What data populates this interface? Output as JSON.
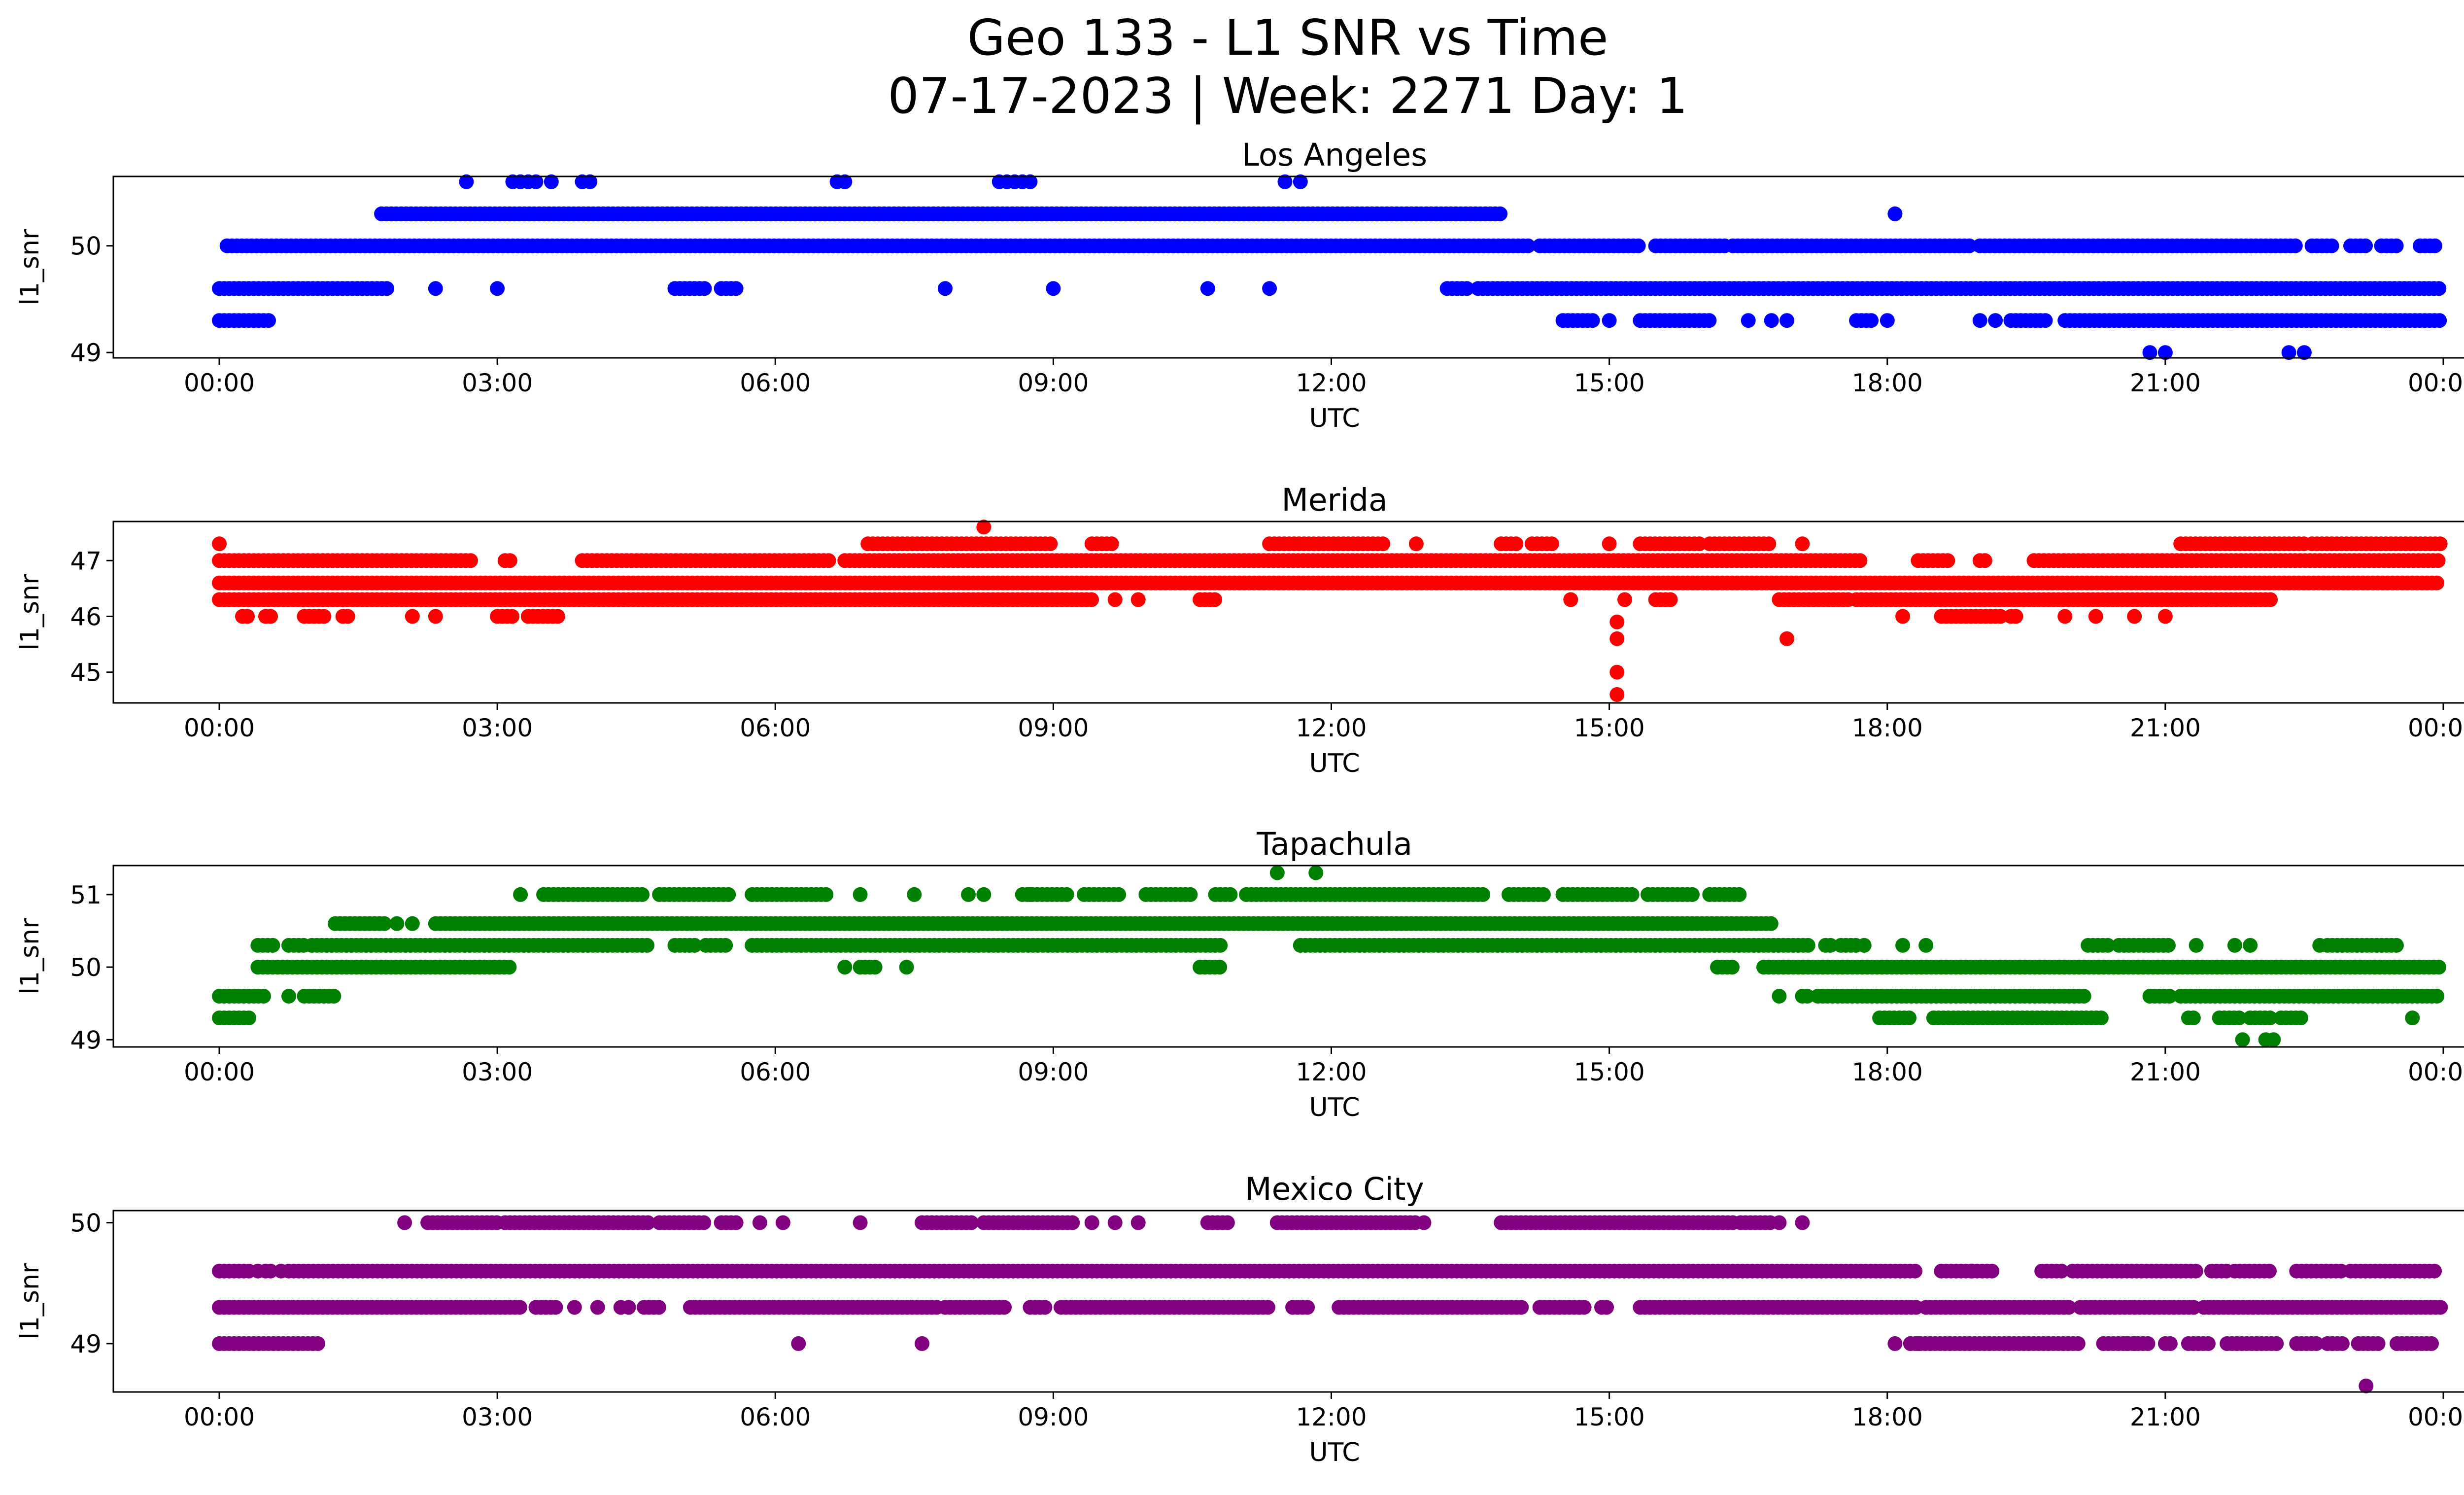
{
  "figure": {
    "title_line1": "Geo 133 - L1 SNR vs Time",
    "title_line2": "07-17-2023 | Week: 2271 Day: 1"
  },
  "chart_data": [
    {
      "type": "scatter",
      "title": "Los Angeles",
      "xlabel": "UTC",
      "ylabel": "l1_snr",
      "color": "#0000ff",
      "xlim": [
        "00:00",
        "24:00"
      ],
      "xticks": [
        "00:00",
        "03:00",
        "06:00",
        "09:00",
        "12:00",
        "15:00",
        "18:00",
        "21:00",
        "00:00"
      ],
      "ylim": [
        48.95,
        50.65
      ],
      "yticks": [
        49,
        50
      ],
      "grid": false,
      "series": [
        {
          "y": 50.0,
          "ranges": [
            [
              "00:05",
              "14:10"
            ],
            [
              "14:15",
              "15:20"
            ],
            [
              "15:30",
              "16:15"
            ],
            [
              "16:20",
              "18:55"
            ],
            [
              "19:00",
              "22:25"
            ],
            [
              "22:35",
              "22:50"
            ],
            [
              "23:00",
              "23:10"
            ],
            [
              "23:20",
              "23:30"
            ],
            [
              "23:45",
              "23:55"
            ]
          ]
        },
        {
          "y": 50.3,
          "ranges": [
            [
              "01:45",
              "13:50"
            ]
          ],
          "points": [
            "18:05"
          ]
        },
        {
          "y": 49.6,
          "ranges": [
            [
              "00:00",
              "01:50"
            ],
            [
              "04:55",
              "05:15"
            ],
            [
              "05:25",
              "05:35"
            ],
            [
              "13:15",
              "13:30"
            ],
            [
              "13:35",
              "23:59"
            ]
          ],
          "points": [
            "02:20",
            "03:00",
            "07:50",
            "09:00",
            "10:40",
            "11:20"
          ]
        },
        {
          "y": 49.3,
          "ranges": [
            [
              "00:00",
              "00:35"
            ],
            [
              "14:30",
              "14:50"
            ],
            [
              "15:20",
              "16:05"
            ],
            [
              "17:40",
              "17:50"
            ],
            [
              "19:20",
              "19:45"
            ],
            [
              "19:55",
              "23:59"
            ]
          ],
          "points": [
            "15:00",
            "16:30",
            "16:45",
            "16:55",
            "18:00",
            "19:00",
            "19:10"
          ]
        },
        {
          "y": 50.6,
          "points": [
            "02:40",
            "03:10",
            "03:15",
            "03:20",
            "03:25",
            "03:35",
            "03:55",
            "04:00",
            "06:40",
            "06:45",
            "08:25",
            "08:30",
            "08:35",
            "08:40",
            "08:45",
            "11:30",
            "11:40"
          ]
        },
        {
          "y": 49.0,
          "points": [
            "20:50",
            "21:00",
            "22:20",
            "22:30"
          ]
        }
      ]
    },
    {
      "type": "scatter",
      "title": "Merida",
      "xlabel": "UTC",
      "ylabel": "l1_snr",
      "color": "#ff0000",
      "xlim": [
        "00:00",
        "24:00"
      ],
      "xticks": [
        "00:00",
        "03:00",
        "06:00",
        "09:00",
        "12:00",
        "15:00",
        "18:00",
        "21:00",
        "00:00"
      ],
      "ylim": [
        44.45,
        47.7
      ],
      "yticks": [
        45,
        46,
        47
      ],
      "grid": false,
      "series": [
        {
          "y": 47.0,
          "ranges": [
            [
              "00:00",
              "02:45"
            ],
            [
              "03:05",
              "03:10"
            ],
            [
              "03:55",
              "06:35"
            ],
            [
              "06:45",
              "17:45"
            ],
            [
              "18:20",
              "18:40"
            ],
            [
              "19:00",
              "19:05"
            ],
            [
              "19:35",
              "23:59"
            ]
          ]
        },
        {
          "y": 46.6,
          "ranges": [
            [
              "00:00",
              "23:59"
            ]
          ]
        },
        {
          "y": 46.3,
          "ranges": [
            [
              "00:00",
              "09:25"
            ],
            [
              "10:35",
              "10:45"
            ],
            [
              "15:30",
              "15:40"
            ],
            [
              "16:50",
              "17:35"
            ],
            [
              "17:40",
              "22:10"
            ]
          ],
          "points": [
            "09:40",
            "09:55",
            "14:35",
            "15:10"
          ]
        },
        {
          "y": 47.3,
          "ranges": [
            [
              "07:00",
              "09:00"
            ],
            [
              "09:25",
              "09:40"
            ],
            [
              "11:20",
              "12:35"
            ],
            [
              "13:50",
              "14:00"
            ],
            [
              "14:10",
              "14:25"
            ],
            [
              "15:20",
              "16:00"
            ],
            [
              "16:05",
              "16:45"
            ],
            [
              "21:10",
              "22:30"
            ],
            [
              "22:35",
              "23:59"
            ]
          ],
          "points": [
            "00:00",
            "12:55",
            "15:00",
            "17:05"
          ]
        },
        {
          "y": 46.0,
          "ranges": [
            [
              "00:15",
              "00:20"
            ],
            [
              "00:30",
              "00:35"
            ],
            [
              "00:55",
              "01:10"
            ],
            [
              "01:20",
              "01:25"
            ],
            [
              "03:00",
              "03:10"
            ],
            [
              "03:20",
              "03:40"
            ],
            [
              "18:35",
              "19:15"
            ],
            [
              "19:20",
              "19:25"
            ]
          ],
          "points": [
            "02:05",
            "02:20",
            "18:10",
            "19:55",
            "20:15",
            "20:40",
            "21:00"
          ]
        },
        {
          "y": 47.6,
          "points": [
            "08:15"
          ]
        },
        {
          "y": 45.9,
          "points": [
            "15:05"
          ]
        },
        {
          "y": 45.6,
          "points": [
            "15:05",
            "16:55"
          ]
        },
        {
          "y": 45.0,
          "points": [
            "15:05"
          ]
        },
        {
          "y": 44.6,
          "points": [
            "15:05"
          ]
        }
      ]
    },
    {
      "type": "scatter",
      "title": "Tapachula",
      "xlabel": "UTC",
      "ylabel": "l1_snr",
      "color": "#008000",
      "xlim": [
        "00:00",
        "24:00"
      ],
      "xticks": [
        "00:00",
        "03:00",
        "06:00",
        "09:00",
        "12:00",
        "15:00",
        "18:00",
        "21:00",
        "00:00"
      ],
      "ylim": [
        48.9,
        51.4
      ],
      "yticks": [
        49,
        50,
        51
      ],
      "grid": false,
      "series": [
        {
          "y": 51.0,
          "ranges": [
            [
              "03:30",
              "04:35"
            ],
            [
              "04:45",
              "05:30"
            ],
            [
              "05:45",
              "06:35"
            ],
            [
              "08:40",
              "09:10"
            ],
            [
              "09:20",
              "09:45"
            ],
            [
              "10:00",
              "10:30"
            ],
            [
              "10:45",
              "10:55"
            ],
            [
              "11:05",
              "13:40"
            ],
            [
              "13:55",
              "14:20"
            ],
            [
              "14:30",
              "15:15"
            ],
            [
              "15:25",
              "15:55"
            ],
            [
              "16:05",
              "16:25"
            ]
          ],
          "points": [
            "03:15",
            "06:55",
            "07:30",
            "08:05",
            "08:15",
            "08:45"
          ]
        },
        {
          "y": 50.6,
          "ranges": [
            [
              "01:15",
              "01:50"
            ],
            [
              "02:20",
              "16:45"
            ]
          ],
          "points": [
            "01:55",
            "02:05"
          ]
        },
        {
          "y": 50.3,
          "ranges": [
            [
              "00:25",
              "00:35"
            ],
            [
              "00:45",
              "00:55"
            ],
            [
              "01:00",
              "04:40"
            ],
            [
              "04:55",
              "05:10"
            ],
            [
              "05:15",
              "05:30"
            ],
            [
              "05:45",
              "10:50"
            ],
            [
              "11:40",
              "17:10"
            ],
            [
              "17:20",
              "17:25"
            ],
            [
              "17:30",
              "17:40"
            ],
            [
              "20:10",
              "20:25"
            ],
            [
              "20:30",
              "21:05"
            ],
            [
              "22:45",
              "23:30"
            ]
          ],
          "points": [
            "17:45",
            "18:10",
            "18:25",
            "21:20",
            "21:45",
            "21:55",
            "22:40"
          ]
        },
        {
          "y": 50.0,
          "ranges": [
            [
              "00:25",
              "03:10"
            ],
            [
              "06:55",
              "07:05"
            ],
            [
              "10:35",
              "10:50"
            ],
            [
              "16:10",
              "16:20"
            ],
            [
              "16:40",
              "23:59"
            ]
          ],
          "points": [
            "06:45",
            "07:25"
          ]
        },
        {
          "y": 49.6,
          "ranges": [
            [
              "00:00",
              "00:30"
            ],
            [
              "00:55",
              "01:15"
            ],
            [
              "17:05",
              "17:10"
            ],
            [
              "17:15",
              "20:10"
            ],
            [
              "20:50",
              "21:05"
            ],
            [
              "21:10",
              "23:59"
            ]
          ],
          "points": [
            "00:45",
            "16:50"
          ]
        },
        {
          "y": 49.3,
          "ranges": [
            [
              "00:00",
              "00:20"
            ],
            [
              "17:55",
              "18:15"
            ],
            [
              "18:30",
              "20:20"
            ],
            [
              "21:15",
              "21:20"
            ],
            [
              "21:35",
              "21:50"
            ],
            [
              "21:55",
              "22:10"
            ],
            [
              "22:15",
              "22:30"
            ]
          ],
          "points": [
            "23:40"
          ]
        },
        {
          "y": 51.3,
          "points": [
            "11:25",
            "11:50"
          ]
        },
        {
          "y": 49.0,
          "points": [
            "21:50",
            "22:05",
            "22:10"
          ]
        }
      ]
    },
    {
      "type": "scatter",
      "title": "Mexico City",
      "xlabel": "UTC",
      "ylabel": "l1_snr",
      "color": "#800080",
      "xlim": [
        "00:00",
        "24:00"
      ],
      "xticks": [
        "00:00",
        "03:00",
        "06:00",
        "09:00",
        "12:00",
        "15:00",
        "18:00",
        "21:00",
        "00:00"
      ],
      "ylim": [
        48.6,
        50.1
      ],
      "yticks": [
        49,
        50
      ],
      "grid": false,
      "series": [
        {
          "y": 50.0,
          "ranges": [
            [
              "02:15",
              "03:00"
            ],
            [
              "03:05",
              "04:40"
            ],
            [
              "04:45",
              "05:15"
            ],
            [
              "05:25",
              "05:35"
            ],
            [
              "07:35",
              "08:10"
            ],
            [
              "08:15",
              "09:15"
            ],
            [
              "10:40",
              "10:55"
            ],
            [
              "11:25",
              "12:55"
            ],
            [
              "13:50",
              "16:20"
            ],
            [
              "16:25",
              "16:45"
            ]
          ],
          "points": [
            "02:00",
            "05:50",
            "06:05",
            "06:55",
            "09:25",
            "09:40",
            "09:55",
            "13:00",
            "16:50",
            "17:05"
          ]
        },
        {
          "y": 49.6,
          "ranges": [
            [
              "00:00",
              "00:20"
            ],
            [
              "00:30",
              "00:35"
            ],
            [
              "00:45",
              "18:20"
            ],
            [
              "18:35",
              "18:55"
            ],
            [
              "18:55",
              "19:10"
            ],
            [
              "19:40",
              "19:55"
            ],
            [
              "20:00",
              "21:20"
            ],
            [
              "21:30",
              "21:40"
            ],
            [
              "21:45",
              "22:10"
            ],
            [
              "22:25",
              "22:55"
            ],
            [
              "23:00",
              "23:55"
            ]
          ],
          "points": [
            "00:25",
            "00:40",
            "18:55"
          ]
        },
        {
          "y": 49.3,
          "ranges": [
            [
              "00:00",
              "03:15"
            ],
            [
              "03:25",
              "03:40"
            ],
            [
              "04:35",
              "04:45"
            ],
            [
              "05:05",
              "07:45"
            ],
            [
              "07:50",
              "08:30"
            ],
            [
              "08:45",
              "08:55"
            ],
            [
              "09:05",
              "11:20"
            ],
            [
              "11:35",
              "11:45"
            ],
            [
              "12:05",
              "14:05"
            ],
            [
              "14:15",
              "14:45"
            ],
            [
              "14:55",
              "15:00"
            ],
            [
              "15:20",
              "18:20"
            ],
            [
              "18:25",
              "20:00"
            ],
            [
              "20:05",
              "21:20"
            ],
            [
              "21:25",
              "23:59"
            ]
          ],
          "points": [
            "03:50",
            "04:05",
            "04:20",
            "04:25"
          ]
        },
        {
          "y": 49.0,
          "ranges": [
            [
              "00:00",
              "01:05"
            ],
            [
              "18:15",
              "20:05"
            ],
            [
              "20:20",
              "20:50"
            ],
            [
              "21:00",
              "21:05"
            ],
            [
              "21:15",
              "21:30"
            ],
            [
              "21:40",
              "22:15"
            ],
            [
              "22:25",
              "22:40"
            ],
            [
              "22:45",
              "22:55"
            ],
            [
              "23:05",
              "23:20"
            ],
            [
              "23:30",
              "23:55"
            ]
          ],
          "points": [
            "06:15",
            "07:35",
            "18:05",
            "18:20",
            "20:35",
            "20:40"
          ]
        },
        {
          "y": 48.65,
          "points": [
            "23:10"
          ]
        }
      ]
    }
  ]
}
